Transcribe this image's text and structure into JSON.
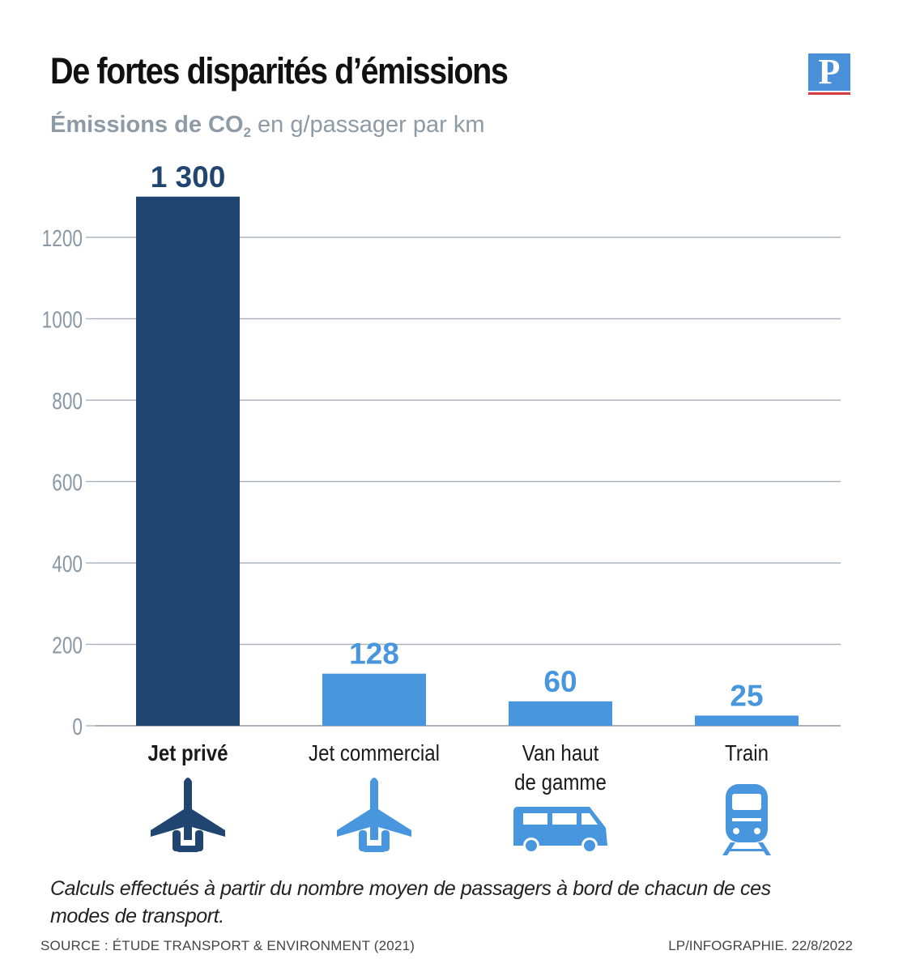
{
  "header": {
    "title": "De fortes disparités d’émissions",
    "subtitle_bold_prefix": "Émissions de CO",
    "subtitle_subscript": "2",
    "subtitle_rest": " en g/passager par km",
    "logo_letter": "P"
  },
  "chart_data": {
    "type": "bar",
    "categories": [
      "Jet privé",
      "Jet commercial",
      "Van haut de gamme",
      "Train"
    ],
    "category_lines": [
      [
        "Jet privé"
      ],
      [
        "Jet commercial"
      ],
      [
        "Van haut",
        "de gamme"
      ],
      [
        "Train"
      ]
    ],
    "values": [
      1300,
      128,
      60,
      25
    ],
    "value_labels": [
      "1 300",
      "128",
      "60",
      "25"
    ],
    "bar_colors": [
      "#1f4570",
      "#4896de",
      "#4896de",
      "#4896de"
    ],
    "value_label_colors": [
      "#1f4570",
      "#4896de",
      "#4896de",
      "#4896de"
    ],
    "highlight_category": "Jet privé",
    "icons": [
      "private-jet-icon",
      "commercial-jet-icon",
      "van-icon",
      "train-icon"
    ],
    "yticks": [
      0,
      200,
      400,
      600,
      800,
      1000,
      1200
    ],
    "ylim": [
      0,
      1300
    ],
    "grid": true,
    "title": "De fortes disparités d’émissions",
    "ylabel": "",
    "xlabel": ""
  },
  "footer": {
    "note": "Calculs effectués à partir du nombre moyen de passagers à bord de chacun de ces modes de transport.",
    "source": "SOURCE : ÉTUDE TRANSPORT & ENVIRONMENT (2021)",
    "credit": "LP/INFOGRAPHIE.  22/8/2022"
  }
}
